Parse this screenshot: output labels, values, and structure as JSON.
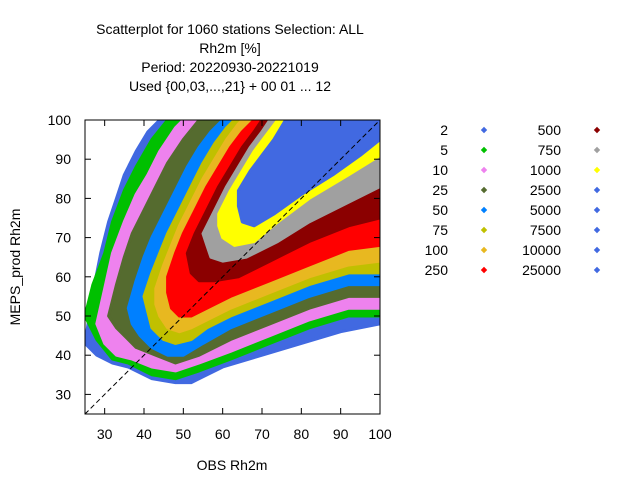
{
  "title_lines": [
    "Scatterplot for 1060 stations Selection: ALL",
    "Rh2m [%]",
    "Period: 20220930-20221019",
    "Used {00,03,...,21} + 00 01 ... 12"
  ],
  "chart_data": {
    "type": "scatter",
    "xlabel": "OBS Rh2m",
    "ylabel": "MEPS_prod Rh2m",
    "xlim": [
      25,
      100
    ],
    "ylim": [
      25,
      100
    ],
    "xticks": [
      "30",
      "40",
      "50",
      "60",
      "70",
      "80",
      "90",
      "100"
    ],
    "yticks": [
      "30",
      "40",
      "50",
      "60",
      "70",
      "80",
      "90",
      "100"
    ],
    "grid": false,
    "diagonal": true,
    "legend_placement": "right",
    "density_classes": [
      {
        "label": "2",
        "color": "#4169e1"
      },
      {
        "label": "5",
        "color": "#00c000"
      },
      {
        "label": "10",
        "color": "#ee82ee"
      },
      {
        "label": "25",
        "color": "#556b2f"
      },
      {
        "label": "50",
        "color": "#0080ff"
      },
      {
        "label": "75",
        "color": "#c0c000"
      },
      {
        "label": "100",
        "color": "#e8b820"
      },
      {
        "label": "250",
        "color": "#ff0000"
      },
      {
        "label": "500",
        "color": "#8b0000"
      },
      {
        "label": "750",
        "color": "#a0a0a0"
      },
      {
        "label": "1000",
        "color": "#ffff00"
      },
      {
        "label": "2500",
        "color": "#4169e1"
      },
      {
        "label": "5000",
        "color": "#4169e1"
      },
      {
        "label": "7500",
        "color": "#4169e1"
      },
      {
        "label": "10000",
        "color": "#4169e1"
      },
      {
        "label": "25000",
        "color": "#4169e1"
      }
    ],
    "density_bands": [
      {
        "class": "2",
        "polygon": [
          [
            25,
            43
          ],
          [
            27,
            56
          ],
          [
            29,
            66
          ],
          [
            31,
            74
          ],
          [
            33,
            80
          ],
          [
            35,
            86
          ],
          [
            38,
            92
          ],
          [
            41,
            97
          ],
          [
            44,
            100
          ],
          [
            60,
            100
          ],
          [
            72,
            100
          ],
          [
            100,
            100
          ],
          [
            100,
            48
          ],
          [
            90,
            46
          ],
          [
            80,
            43
          ],
          [
            70,
            40
          ],
          [
            60,
            37
          ],
          [
            52,
            33
          ],
          [
            48,
            33
          ],
          [
            42,
            34
          ],
          [
            36,
            37
          ],
          [
            32,
            38
          ],
          [
            28,
            40
          ]
        ]
      },
      {
        "class": "5",
        "polygon": [
          [
            25,
            50
          ],
          [
            27,
            58
          ],
          [
            30,
            66
          ],
          [
            32,
            74
          ],
          [
            35,
            82
          ],
          [
            38,
            88
          ],
          [
            42,
            95
          ],
          [
            46,
            100
          ],
          [
            100,
            100
          ],
          [
            100,
            50
          ],
          [
            92,
            50
          ],
          [
            82,
            47
          ],
          [
            72,
            43
          ],
          [
            62,
            39
          ],
          [
            54,
            36
          ],
          [
            48,
            34
          ],
          [
            42,
            35
          ],
          [
            36,
            38
          ],
          [
            32,
            39
          ],
          [
            28,
            44
          ]
        ]
      },
      {
        "class": "10",
        "polygon": [
          [
            28,
            48
          ],
          [
            30,
            57
          ],
          [
            32,
            66
          ],
          [
            35,
            74
          ],
          [
            38,
            81
          ],
          [
            41,
            86
          ],
          [
            44,
            92
          ],
          [
            48,
            98
          ],
          [
            50,
            100
          ],
          [
            100,
            100
          ],
          [
            100,
            52
          ],
          [
            92,
            52
          ],
          [
            82,
            49
          ],
          [
            72,
            45
          ],
          [
            62,
            41
          ],
          [
            54,
            38
          ],
          [
            48,
            36
          ],
          [
            42,
            37
          ],
          [
            37,
            39
          ],
          [
            33,
            40
          ],
          [
            30,
            43
          ]
        ]
      },
      {
        "class": "25",
        "polygon": [
          [
            31,
            50
          ],
          [
            33,
            58
          ],
          [
            35,
            65
          ],
          [
            37,
            71
          ],
          [
            40,
            77
          ],
          [
            43,
            83
          ],
          [
            46,
            89
          ],
          [
            50,
            95
          ],
          [
            54,
            100
          ],
          [
            100,
            100
          ],
          [
            100,
            55
          ],
          [
            92,
            55
          ],
          [
            82,
            52
          ],
          [
            72,
            48
          ],
          [
            62,
            44
          ],
          [
            54,
            40
          ],
          [
            48,
            38
          ],
          [
            43,
            40
          ],
          [
            38,
            42
          ],
          [
            35,
            45
          ],
          [
            33,
            47
          ]
        ]
      },
      {
        "class": "50",
        "polygon": [
          [
            36,
            52
          ],
          [
            38,
            59
          ],
          [
            40,
            65
          ],
          [
            42,
            70
          ],
          [
            45,
            76
          ],
          [
            48,
            82
          ],
          [
            51,
            88
          ],
          [
            54,
            93
          ],
          [
            57,
            97
          ],
          [
            60,
            100
          ],
          [
            100,
            100
          ],
          [
            100,
            58
          ],
          [
            92,
            58
          ],
          [
            82,
            55
          ],
          [
            72,
            51
          ],
          [
            62,
            47
          ],
          [
            55,
            43
          ],
          [
            50,
            40
          ],
          [
            46,
            40
          ],
          [
            42,
            42
          ],
          [
            39,
            45
          ],
          [
            37,
            48
          ]
        ]
      },
      {
        "class": "75",
        "polygon": [
          [
            40,
            55
          ],
          [
            42,
            61
          ],
          [
            44,
            66
          ],
          [
            46,
            71
          ],
          [
            49,
            77
          ],
          [
            52,
            83
          ],
          [
            55,
            89
          ],
          [
            58,
            94
          ],
          [
            61,
            98
          ],
          [
            63,
            100
          ],
          [
            100,
            100
          ],
          [
            100,
            61
          ],
          [
            92,
            61
          ],
          [
            82,
            58
          ],
          [
            72,
            54
          ],
          [
            62,
            50
          ],
          [
            56,
            47
          ],
          [
            52,
            44
          ],
          [
            48,
            43
          ],
          [
            45,
            44
          ],
          [
            42,
            47
          ],
          [
            41,
            51
          ]
        ]
      },
      {
        "class": "100",
        "polygon": [
          [
            43,
            57
          ],
          [
            45,
            63
          ],
          [
            47,
            68
          ],
          [
            49,
            73
          ],
          [
            52,
            79
          ],
          [
            55,
            85
          ],
          [
            58,
            90
          ],
          [
            61,
            95
          ],
          [
            64,
            99
          ],
          [
            65,
            100
          ],
          [
            100,
            100
          ],
          [
            100,
            64
          ],
          [
            92,
            63
          ],
          [
            82,
            60
          ],
          [
            72,
            56
          ],
          [
            62,
            52
          ],
          [
            56,
            49
          ],
          [
            52,
            47
          ],
          [
            49,
            46
          ],
          [
            46,
            47
          ],
          [
            44,
            50
          ],
          [
            43,
            53
          ]
        ]
      },
      {
        "class": "250",
        "polygon": [
          [
            46,
            60
          ],
          [
            48,
            66
          ],
          [
            50,
            71
          ],
          [
            53,
            77
          ],
          [
            56,
            83
          ],
          [
            59,
            88
          ],
          [
            62,
            93
          ],
          [
            65,
            97
          ],
          [
            68,
            100
          ],
          [
            100,
            100
          ],
          [
            100,
            68
          ],
          [
            92,
            67
          ],
          [
            82,
            63
          ],
          [
            72,
            59
          ],
          [
            62,
            55
          ],
          [
            56,
            52
          ],
          [
            52,
            50
          ],
          [
            49,
            50
          ],
          [
            47,
            52
          ],
          [
            46,
            56
          ]
        ]
      },
      {
        "class": "500",
        "polygon": [
          [
            51,
            66
          ],
          [
            53,
            71
          ],
          [
            56,
            77
          ],
          [
            59,
            83
          ],
          [
            62,
            88
          ],
          [
            65,
            93
          ],
          [
            68,
            97
          ],
          [
            70,
            100
          ],
          [
            100,
            100
          ],
          [
            100,
            75
          ],
          [
            92,
            73
          ],
          [
            82,
            69
          ],
          [
            72,
            64
          ],
          [
            64,
            60
          ],
          [
            58,
            59
          ],
          [
            54,
            59
          ],
          [
            52,
            61
          ]
        ]
      },
      {
        "class": "750",
        "polygon": [
          [
            55,
            71
          ],
          [
            58,
            77
          ],
          [
            61,
            83
          ],
          [
            64,
            88
          ],
          [
            67,
            93
          ],
          [
            70,
            97
          ],
          [
            72,
            100
          ],
          [
            100,
            100
          ],
          [
            100,
            83
          ],
          [
            92,
            79
          ],
          [
            82,
            74
          ],
          [
            74,
            69
          ],
          [
            66,
            65
          ],
          [
            60,
            64
          ],
          [
            57,
            65
          ],
          [
            56,
            68
          ]
        ]
      },
      {
        "class": "1000",
        "polygon": [
          [
            59,
            76
          ],
          [
            62,
            82
          ],
          [
            65,
            87
          ],
          [
            68,
            92
          ],
          [
            71,
            96
          ],
          [
            74,
            100
          ],
          [
            100,
            100
          ],
          [
            100,
            91
          ],
          [
            92,
            86
          ],
          [
            82,
            80
          ],
          [
            74,
            74
          ],
          [
            68,
            69
          ],
          [
            63,
            68
          ],
          [
            60,
            70
          ],
          [
            59,
            73
          ]
        ]
      },
      {
        "class": "2500",
        "polygon": [
          [
            64,
            82
          ],
          [
            67,
            87
          ],
          [
            70,
            91
          ],
          [
            73,
            95
          ],
          [
            76,
            100
          ],
          [
            100,
            100
          ],
          [
            100,
            95
          ],
          [
            95,
            91
          ],
          [
            88,
            86
          ],
          [
            80,
            81
          ],
          [
            73,
            76
          ],
          [
            68,
            73
          ],
          [
            65,
            74
          ],
          [
            64,
            78
          ]
        ]
      }
    ]
  }
}
